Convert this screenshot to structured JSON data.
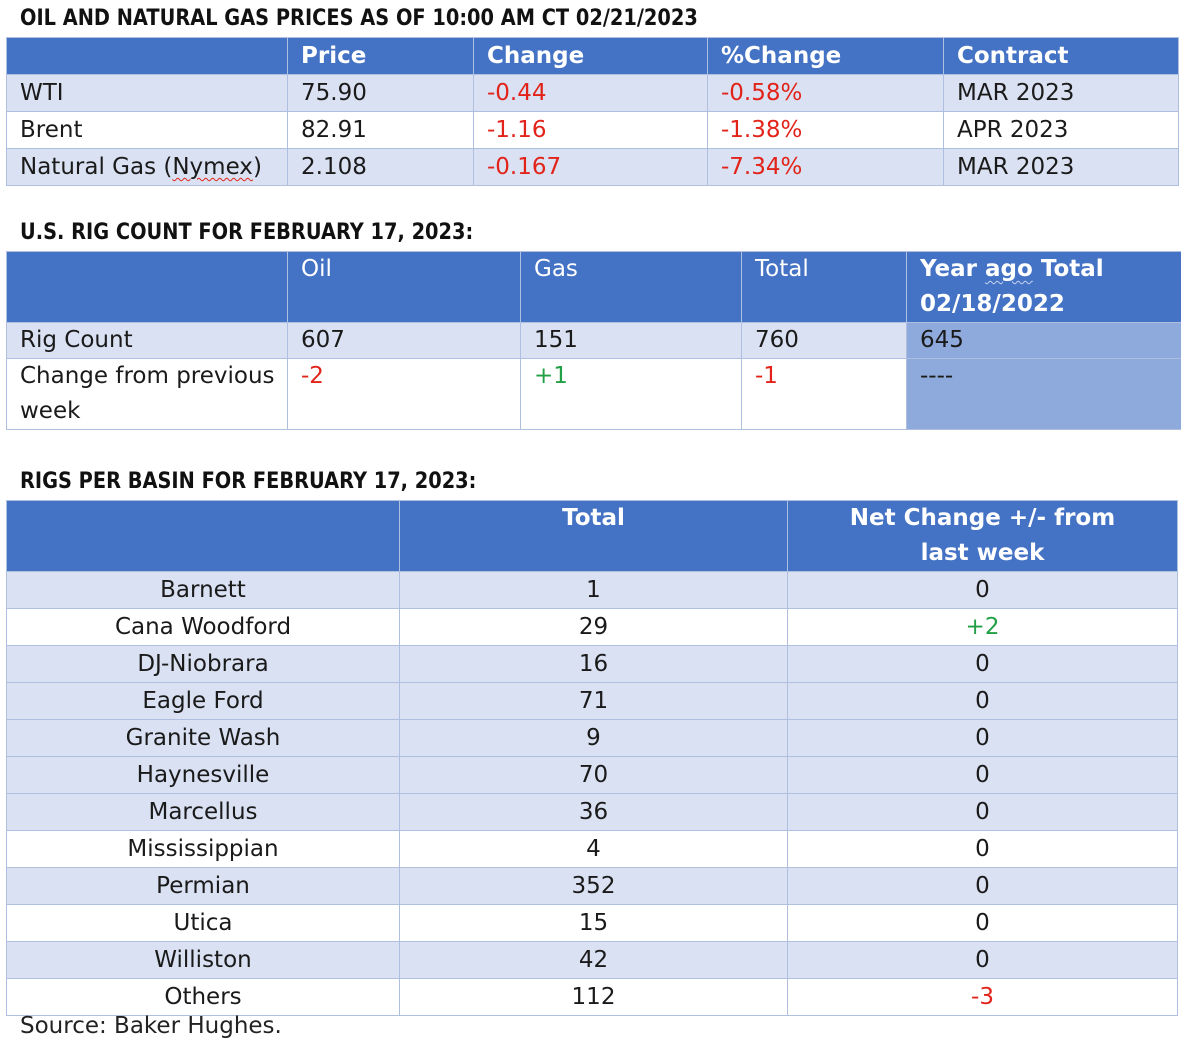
{
  "prices": {
    "title": "OIL AND NATURAL GAS PRICES AS OF 10:00 AM CT 02/21/2023",
    "headers": [
      "",
      "Price",
      "Change",
      "%Change",
      "Contract"
    ],
    "rows": [
      {
        "name": "WTI",
        "price": "75.90",
        "change": "-0.44",
        "pct_change": "-0.58%",
        "contract": "MAR 2023"
      },
      {
        "name": "Brent",
        "price": "82.91",
        "change": "-1.16",
        "pct_change": "-1.38%",
        "contract": "APR 2023"
      },
      {
        "name_prefix": "Natural Gas (",
        "name_flag": "Nymex",
        "name_suffix": ")",
        "price": "2.108",
        "change": "-0.167",
        "pct_change": "-7.34%",
        "contract": "MAR 2023"
      }
    ]
  },
  "rig_count": {
    "title": "U.S. RIG COUNT FOR FEBRUARY 17, 2023:",
    "headers": {
      "blank": "",
      "oil": "Oil",
      "gas": "Gas",
      "total": "Total",
      "year_ago_line1_a": "Year ",
      "year_ago_line1_flag": "ago",
      "year_ago_line1_b": " Total",
      "year_ago_line2": "02/18/2022"
    },
    "rows": [
      {
        "label": "Rig Count",
        "oil": "607",
        "gas": "151",
        "total": "760",
        "year_ago": "645"
      },
      {
        "label": "Change from previous week",
        "oil": "-2",
        "gas": "+1",
        "total": "-1",
        "year_ago": "----"
      }
    ]
  },
  "basins": {
    "title": "RIGS PER BASIN FOR FEBRUARY 17, 2023:",
    "headers": [
      "",
      "Total",
      "Net Change +/- from last week"
    ],
    "rows": [
      {
        "name": "Barnett",
        "total": "1",
        "net_change": "0"
      },
      {
        "name": "Cana Woodford",
        "total": "29",
        "net_change": "+2"
      },
      {
        "name": "DJ-Niobrara",
        "total": "16",
        "net_change": "0"
      },
      {
        "name": "Eagle Ford",
        "total": "71",
        "net_change": "0"
      },
      {
        "name": "Granite Wash",
        "total": "9",
        "net_change": "0"
      },
      {
        "name": "Haynesville",
        "total": "70",
        "net_change": "0"
      },
      {
        "name": "Marcellus",
        "total": "36",
        "net_change": "0"
      },
      {
        "name": "Mississippian",
        "total": "4",
        "net_change": "0"
      },
      {
        "name": "Permian",
        "total": "352",
        "net_change": "0"
      },
      {
        "name": "Utica",
        "total": "15",
        "net_change": "0"
      },
      {
        "name": "Williston",
        "total": "42",
        "net_change": "0"
      },
      {
        "name": "Others",
        "total": "112",
        "net_change": "-3"
      }
    ]
  },
  "source": "Source: Baker Hughes.",
  "colors": {
    "header_blue": "#4472c4",
    "row_shade": "#d9e1f2",
    "year_ago_shade": "#8ea9db",
    "negative_red": "#e2231a",
    "positive_green": "#21a045"
  }
}
